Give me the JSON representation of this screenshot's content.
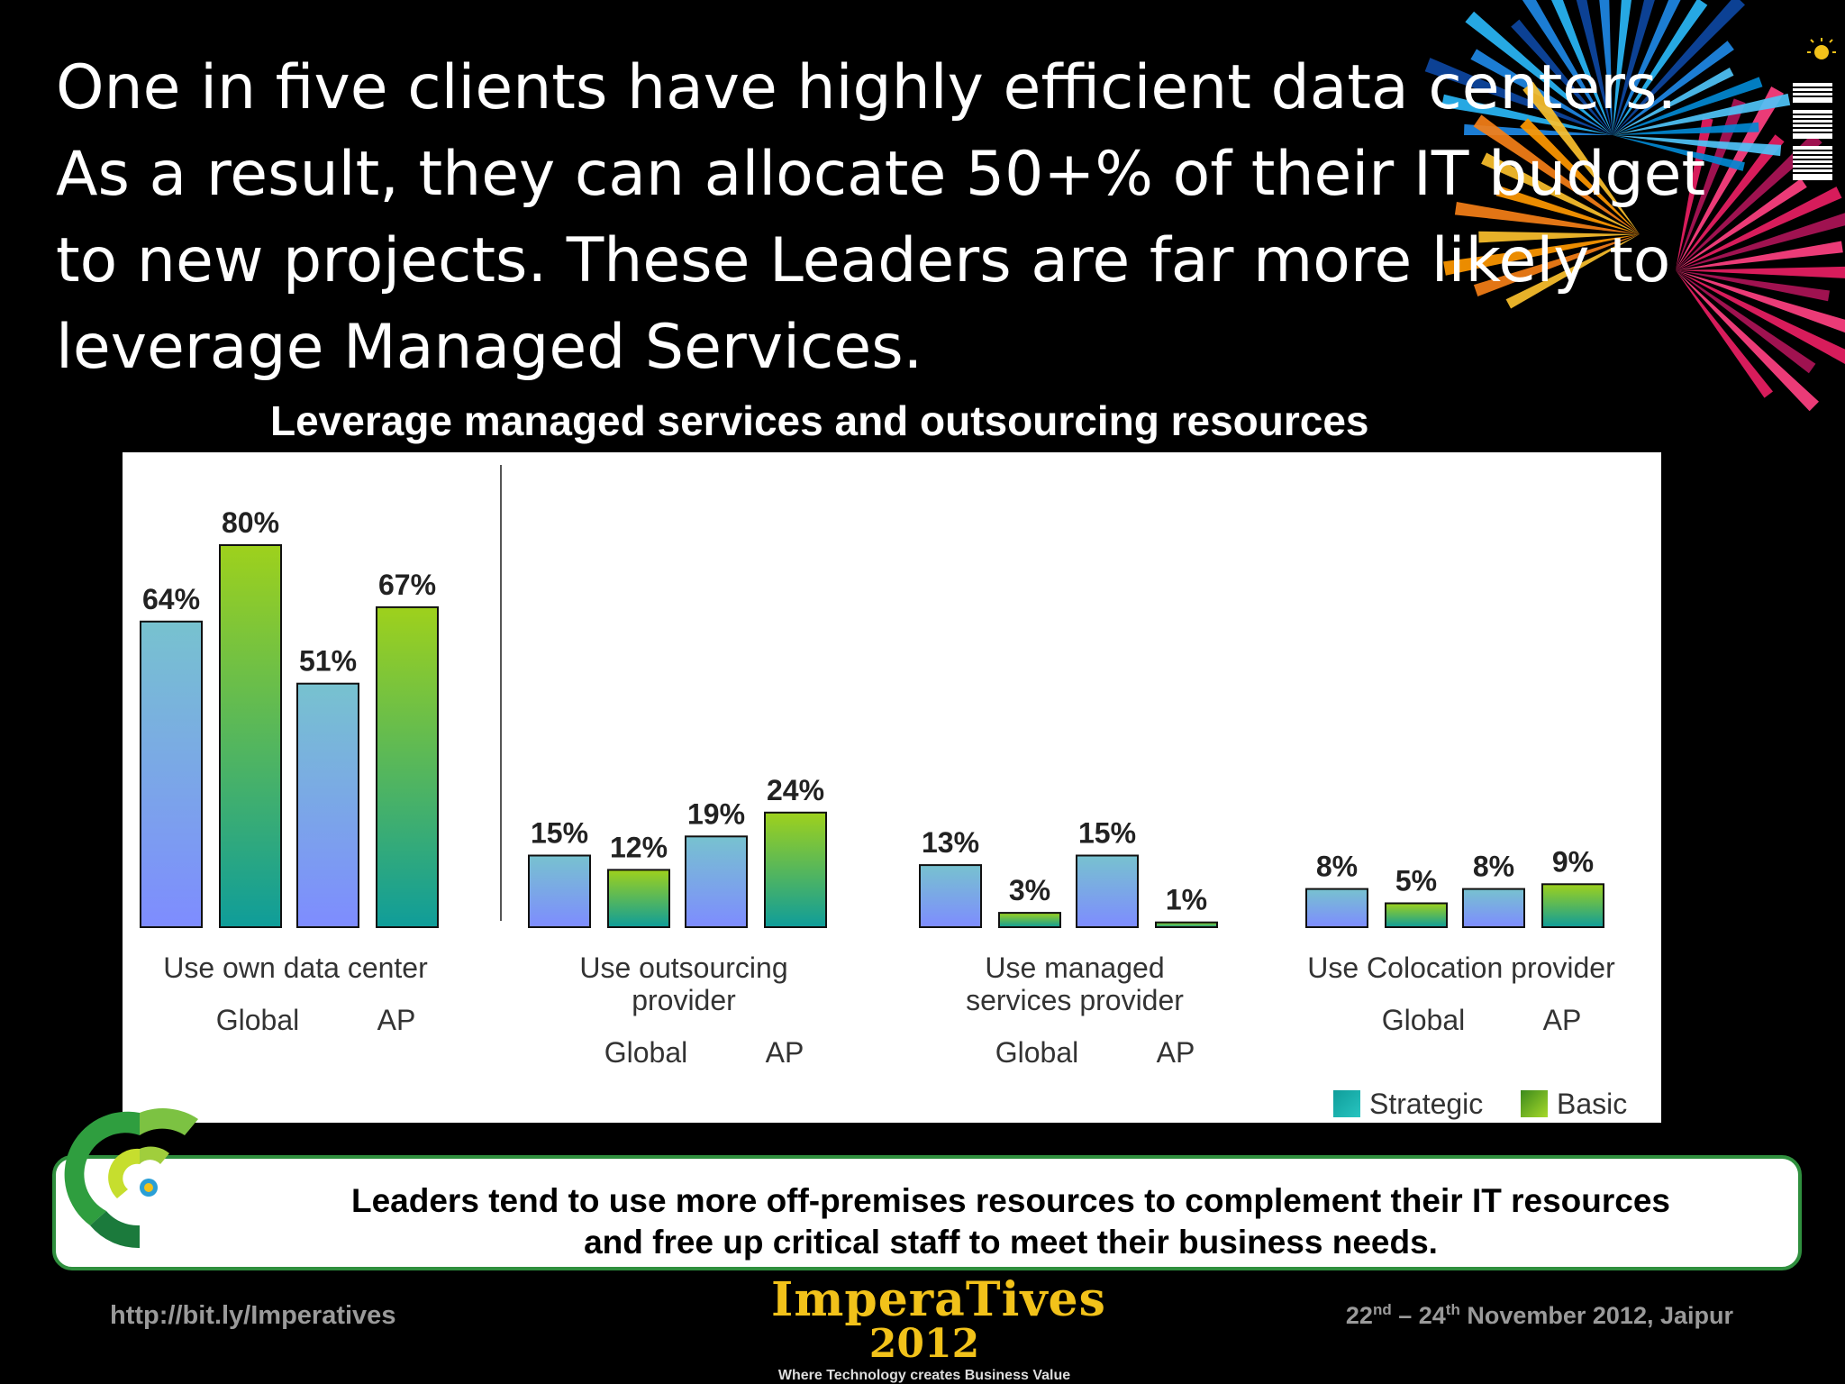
{
  "slide": {
    "headline": "One in five clients have highly efficient data centers.  As a result, they can allocate 50+% of their IT budget to new projects.  These Leaders are far more likely to leverage Managed Services.",
    "logo_icon": "ibm-logo-icon",
    "decoration_icon": "starburst-ribbons-icon"
  },
  "chart_data": {
    "type": "bar",
    "title": "Leverage managed services and outsourcing resources",
    "groups": [
      {
        "label": [
          "Use own data center"
        ],
        "regions": [
          "Global",
          "AP"
        ]
      },
      {
        "label": [
          "Use outsourcing",
          "provider"
        ],
        "regions": [
          "Global",
          "AP"
        ]
      },
      {
        "label": [
          "Use managed",
          "services provider"
        ],
        "regions": [
          "Global",
          "AP"
        ]
      },
      {
        "label": [
          "Use Colocation provider"
        ],
        "regions": [
          "Global",
          "AP"
        ]
      }
    ],
    "series": [
      {
        "name": "Strategic",
        "region": "Global",
        "values": [
          64,
          15,
          13,
          8
        ]
      },
      {
        "name": "Basic",
        "region": "Global",
        "values": [
          80,
          12,
          3,
          5
        ]
      },
      {
        "name": "Strategic",
        "region": "AP",
        "values": [
          51,
          19,
          15,
          8
        ]
      },
      {
        "name": "Basic",
        "region": "AP",
        "values": [
          67,
          24,
          1,
          9
        ]
      }
    ],
    "value_suffix": "%",
    "ylim": [
      0,
      100
    ],
    "grid": false,
    "legend": {
      "placement": "bottom-right",
      "entries": [
        "Strategic",
        "Basic"
      ]
    },
    "colors": {
      "strategic_global": [
        "#77c2cf",
        "#7e8cff"
      ],
      "basic_global": [
        "#9ed11c",
        "#0f9d9a"
      ],
      "strategic_ap": [
        "#77c2cf",
        "#7e8cff"
      ],
      "basic_ap": [
        "#9ed11c",
        "#0f9d9a"
      ]
    }
  },
  "callout": {
    "text_line1": "Leaders tend to use more off-premises resources to complement their IT resources",
    "text_line2": "and free up critical staff to meet their business needs.",
    "icon": "concentric-arcs-icon"
  },
  "footer": {
    "link": "http://bit.ly/Imperatives",
    "brand_name": "ImperaTives",
    "brand_year": "2012",
    "brand_tagline": "Where Technology creates Business Value",
    "date_d1": "22",
    "date_s1": "nd",
    "date_mid": " – 24",
    "date_s2": "th",
    "date_rest": " November 2012, Jaipur"
  }
}
